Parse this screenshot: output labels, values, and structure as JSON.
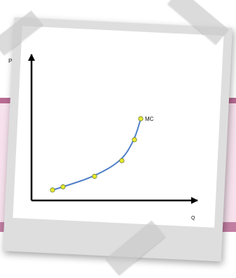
{
  "chart_data": {
    "type": "line",
    "title": "",
    "xlabel": "Q",
    "ylabel": "P",
    "series": [
      {
        "name": "MC",
        "x": [
          1.0,
          1.5,
          3.0,
          4.3,
          4.9,
          5.2
        ],
        "y": [
          1.0,
          1.3,
          2.3,
          3.8,
          5.8,
          7.8
        ]
      }
    ],
    "xlim": [
      0,
      10
    ],
    "ylim": [
      0,
      10
    ],
    "grid": false,
    "line_color": "#4f7fc7",
    "marker_color": "#e8ea2c"
  }
}
